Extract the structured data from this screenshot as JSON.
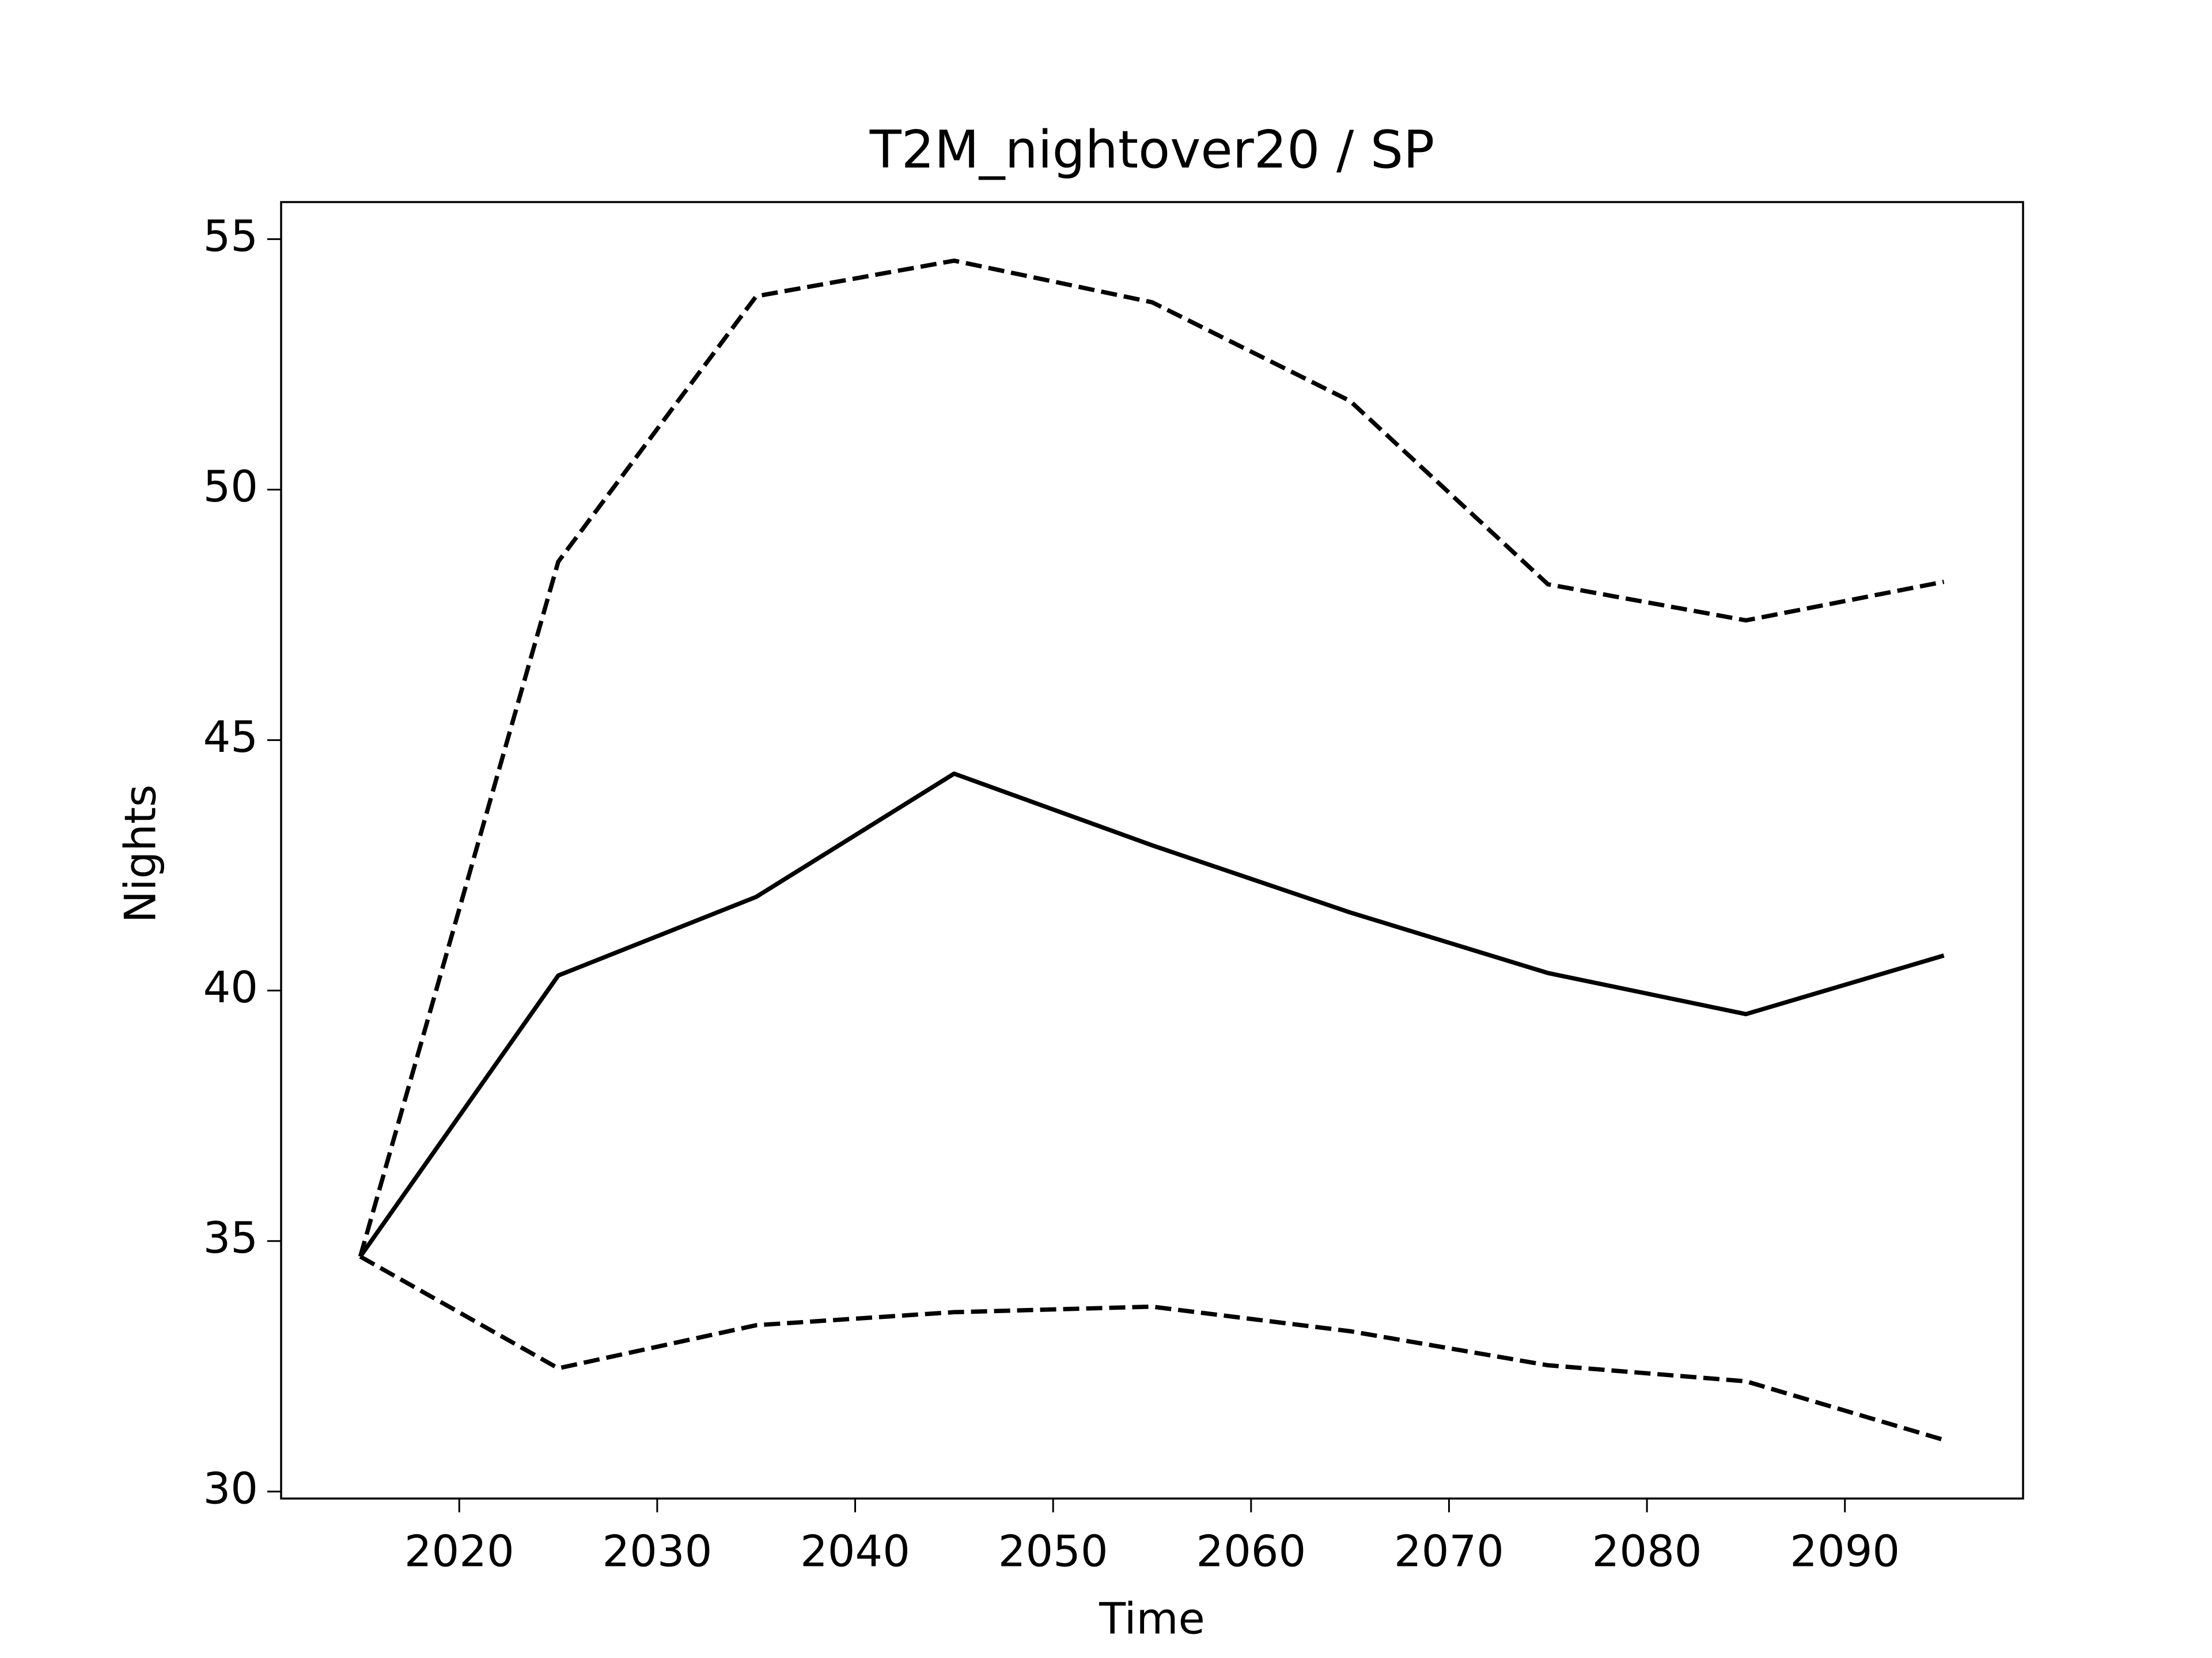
{
  "chart_data": {
    "type": "line",
    "title": "T2M_nightover20 / SP",
    "xlabel": "Time",
    "ylabel": "Nights",
    "x": [
      2015,
      2025,
      2035,
      2045,
      2055,
      2065,
      2075,
      2085,
      2095
    ],
    "series": [
      {
        "color": "#000000",
        "linestyle": "solid",
        "values": [
          34.69,
          40.3,
          41.87,
          44.33,
          42.9,
          41.56,
          40.35,
          39.53,
          40.7
        ]
      },
      {
        "color": "#000000",
        "linestyle": "dashed",
        "values": [
          34.69,
          48.56,
          53.86,
          54.57,
          53.74,
          51.77,
          48.11,
          47.39,
          48.16
        ]
      },
      {
        "color": "#000000",
        "linestyle": "dashed",
        "values": [
          34.69,
          32.46,
          33.32,
          33.58,
          33.69,
          33.2,
          32.52,
          32.2,
          31.03
        ]
      }
    ],
    "xlim": [
      2011,
      2099
    ],
    "xticks": [
      2020,
      2030,
      2040,
      2050,
      2060,
      2070,
      2080,
      2090
    ],
    "ylim": [
      29.86,
      55.74
    ],
    "yticks": [
      30,
      35,
      40,
      45,
      50,
      55
    ],
    "grid": false
  }
}
